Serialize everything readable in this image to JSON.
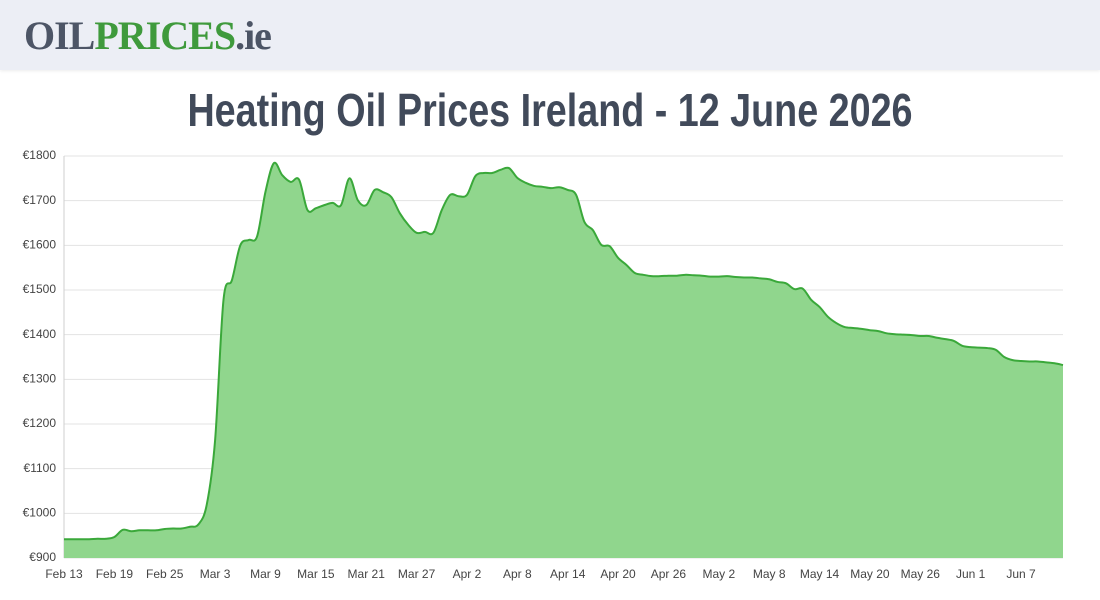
{
  "header": {
    "logo_parts": [
      "OIL",
      "PRICES",
      ".ie"
    ]
  },
  "chart_data": {
    "type": "area",
    "title": "Heating Oil Prices Ireland - 12 June 2026",
    "categories": [
      "Feb 13",
      null,
      null,
      null,
      null,
      null,
      "Feb 19",
      null,
      null,
      null,
      null,
      null,
      "Feb 25",
      null,
      null,
      null,
      null,
      null,
      "Mar 3",
      null,
      null,
      null,
      null,
      null,
      "Mar 9",
      null,
      null,
      null,
      null,
      null,
      "Mar 15",
      null,
      null,
      null,
      null,
      null,
      "Mar 21",
      null,
      null,
      null,
      null,
      null,
      "Mar 27",
      null,
      null,
      null,
      null,
      null,
      "Apr 2",
      null,
      null,
      null,
      null,
      null,
      "Apr 8",
      null,
      null,
      null,
      null,
      null,
      "Apr 14",
      null,
      null,
      null,
      null,
      null,
      "Apr 20",
      null,
      null,
      null,
      null,
      null,
      "Apr 26",
      null,
      null,
      null,
      null,
      null,
      "May 2",
      null,
      null,
      null,
      null,
      null,
      "May 8",
      null,
      null,
      null,
      null,
      null,
      "May 14",
      null,
      null,
      null,
      null,
      null,
      "May 20",
      null,
      null,
      null,
      null,
      null,
      "May 26",
      null,
      null,
      null,
      null,
      null,
      "Jun 1",
      null,
      null,
      null,
      null,
      null,
      "Jun 7",
      null,
      null,
      null,
      null,
      null
    ],
    "values": [
      942,
      942,
      942,
      942,
      943,
      943,
      947,
      963,
      960,
      962,
      962,
      962,
      965,
      966,
      966,
      970,
      975,
      1019,
      1164,
      1478,
      1522,
      1600,
      1612,
      1620,
      1720,
      1784,
      1757,
      1742,
      1747,
      1679,
      1683,
      1690,
      1695,
      1690,
      1750,
      1701,
      1690,
      1724,
      1719,
      1708,
      1672,
      1646,
      1628,
      1630,
      1628,
      1679,
      1713,
      1710,
      1713,
      1755,
      1762,
      1762,
      1769,
      1773,
      1751,
      1740,
      1733,
      1731,
      1728,
      1730,
      1724,
      1713,
      1652,
      1634,
      1601,
      1598,
      1572,
      1556,
      1538,
      1534,
      1531,
      1531,
      1532,
      1532,
      1534,
      1533,
      1532,
      1530,
      1530,
      1531,
      1529,
      1528,
      1528,
      1526,
      1524,
      1518,
      1515,
      1502,
      1503,
      1478,
      1462,
      1440,
      1426,
      1417,
      1415,
      1413,
      1410,
      1408,
      1403,
      1401,
      1400,
      1399,
      1397,
      1397,
      1393,
      1390,
      1386,
      1375,
      1372,
      1371,
      1370,
      1366,
      1350,
      1343,
      1341,
      1340,
      1340,
      1338,
      1336,
      1332
    ],
    "color": "#3aa83a",
    "fill_color": "#90d68d",
    "ylim": [
      900,
      1800
    ],
    "yticks": [
      {
        "value": 900,
        "label": "€900"
      },
      {
        "value": 1000,
        "label": "€1000"
      },
      {
        "value": 1100,
        "label": "€1100"
      },
      {
        "value": 1200,
        "label": "€1200"
      },
      {
        "value": 1300,
        "label": "€1300"
      },
      {
        "value": 1400,
        "label": "€1400"
      },
      {
        "value": 1500,
        "label": "€1500"
      },
      {
        "value": 1600,
        "label": "€1600"
      },
      {
        "value": 1700,
        "label": "€1700"
      },
      {
        "value": 1800,
        "label": "€1800"
      }
    ],
    "grid": true
  }
}
